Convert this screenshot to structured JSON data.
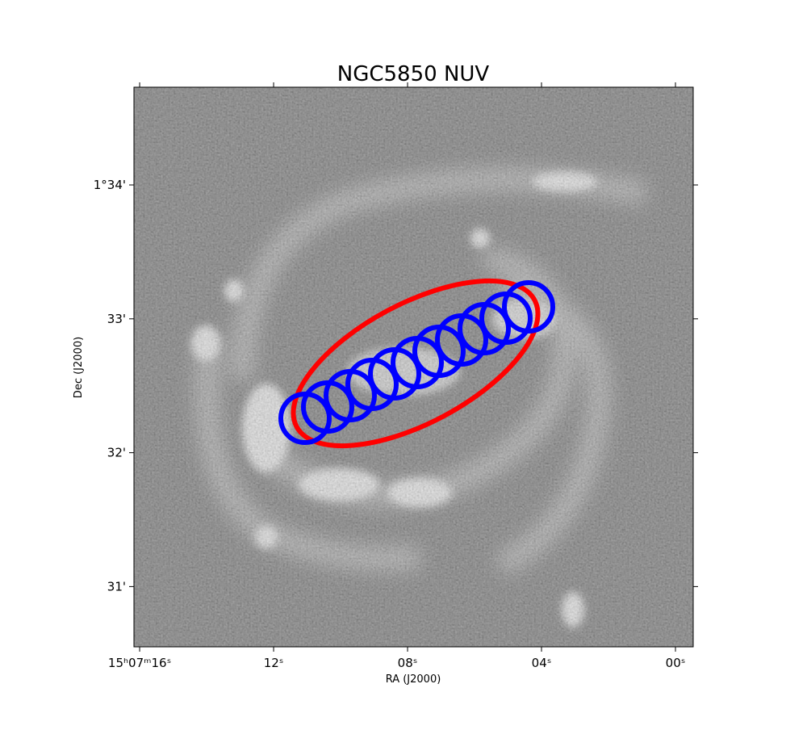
{
  "chart_data": {
    "type": "image",
    "title": "NGC5850    NUV",
    "x_label": "RA (J2000)",
    "y_label": "Dec (J2000)",
    "xlim": [
      16.17,
      -0.53
    ],
    "xticks": [
      {
        "value": 16,
        "label": "15ʰ07ᵐ16ˢ"
      },
      {
        "value": 12,
        "label": "12ˢ"
      },
      {
        "value": 8,
        "label": "08ˢ"
      },
      {
        "value": 4,
        "label": "04ˢ"
      },
      {
        "value": 0,
        "label": "00ˢ"
      }
    ],
    "ylim": [
      30.55,
      34.73
    ],
    "yticks": [
      {
        "value": 31,
        "label": "31'"
      },
      {
        "value": 32,
        "label": "32'"
      },
      {
        "value": 33,
        "label": "33'"
      },
      {
        "value": 34,
        "label": "1°34'"
      }
    ]
  }
}
